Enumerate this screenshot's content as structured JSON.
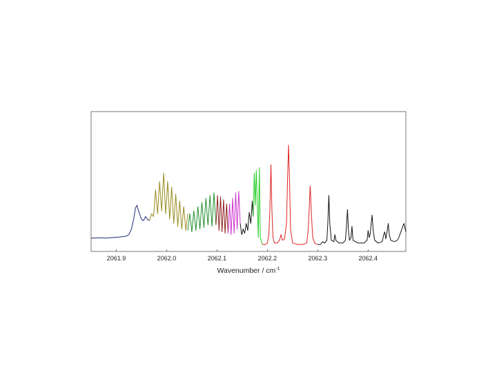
{
  "chart_data": {
    "type": "line",
    "title": "",
    "xlabel_main": "Wavenumber / cm",
    "xlabel_superscript": "-1",
    "ylabel": "",
    "xlim": [
      2061.85,
      2062.475
    ],
    "ylim": [
      0,
      1
    ],
    "y_axis_ticks_labeled": false,
    "grid": false,
    "legend": "none",
    "x_ticks": [
      {
        "value": 2061.9,
        "label": "2061.9"
      },
      {
        "value": 2062.0,
        "label": "2062.0"
      },
      {
        "value": 2062.1,
        "label": "2062.1"
      },
      {
        "value": 2062.2,
        "label": "2062.2"
      },
      {
        "value": 2062.3,
        "label": "2062.3"
      },
      {
        "value": 2062.4,
        "label": "2062.4"
      }
    ],
    "series": [
      {
        "color": "#1f2a7a",
        "points": [
          [
            2061.85,
            0.095
          ],
          [
            2061.865,
            0.098
          ],
          [
            2061.88,
            0.096
          ],
          [
            2061.895,
            0.1
          ],
          [
            2061.91,
            0.104
          ],
          [
            2061.92,
            0.11
          ],
          [
            2061.925,
            0.12
          ],
          [
            2061.93,
            0.16
          ],
          [
            2061.935,
            0.24
          ],
          [
            2061.938,
            0.31
          ],
          [
            2061.941,
            0.33
          ],
          [
            2061.944,
            0.29
          ],
          [
            2061.947,
            0.26
          ],
          [
            2061.95,
            0.23
          ],
          [
            2061.954,
            0.22
          ],
          [
            2061.958,
            0.25
          ],
          [
            2061.962,
            0.23
          ],
          [
            2061.966,
            0.22
          ]
        ]
      },
      {
        "color": "#9a8a1c",
        "points": [
          [
            2061.966,
            0.22
          ],
          [
            2061.97,
            0.27
          ],
          [
            2061.974,
            0.25
          ],
          [
            2061.978,
            0.44
          ],
          [
            2061.982,
            0.27
          ],
          [
            2061.986,
            0.5
          ],
          [
            2061.99,
            0.29
          ],
          [
            2061.994,
            0.56
          ],
          [
            2061.998,
            0.27
          ],
          [
            2062.002,
            0.5
          ],
          [
            2062.006,
            0.23
          ],
          [
            2062.01,
            0.46
          ],
          [
            2062.014,
            0.2
          ],
          [
            2062.018,
            0.41
          ],
          [
            2062.022,
            0.18
          ],
          [
            2062.026,
            0.36
          ],
          [
            2062.03,
            0.16
          ],
          [
            2062.034,
            0.32
          ],
          [
            2062.038,
            0.15
          ],
          [
            2062.042,
            0.27
          ]
        ]
      },
      {
        "color": "#1e8f2a",
        "points": [
          [
            2062.042,
            0.15
          ],
          [
            2062.046,
            0.27
          ],
          [
            2062.05,
            0.14
          ],
          [
            2062.054,
            0.29
          ],
          [
            2062.058,
            0.15
          ],
          [
            2062.062,
            0.32
          ],
          [
            2062.066,
            0.16
          ],
          [
            2062.07,
            0.35
          ],
          [
            2062.074,
            0.17
          ],
          [
            2062.078,
            0.38
          ],
          [
            2062.082,
            0.19
          ],
          [
            2062.086,
            0.4
          ],
          [
            2062.09,
            0.18
          ],
          [
            2062.094,
            0.42
          ],
          [
            2062.098,
            0.19
          ]
        ]
      },
      {
        "color": "#8b1a1a",
        "points": [
          [
            2062.098,
            0.19
          ],
          [
            2062.101,
            0.4
          ],
          [
            2062.104,
            0.15
          ],
          [
            2062.107,
            0.39
          ],
          [
            2062.11,
            0.14
          ],
          [
            2062.113,
            0.37
          ],
          [
            2062.116,
            0.13
          ],
          [
            2062.119,
            0.34
          ],
          [
            2062.122,
            0.13
          ]
        ]
      },
      {
        "color": "#cc33cc",
        "points": [
          [
            2062.122,
            0.13
          ],
          [
            2062.125,
            0.34
          ],
          [
            2062.128,
            0.12
          ],
          [
            2062.131,
            0.38
          ],
          [
            2062.134,
            0.13
          ],
          [
            2062.137,
            0.42
          ],
          [
            2062.14,
            0.16
          ],
          [
            2062.143,
            0.43
          ],
          [
            2062.146,
            0.2
          ]
        ]
      },
      {
        "color": "#111111",
        "points": [
          [
            2062.146,
            0.2
          ],
          [
            2062.149,
            0.12
          ],
          [
            2062.152,
            0.16
          ],
          [
            2062.155,
            0.13
          ],
          [
            2062.158,
            0.2
          ],
          [
            2062.161,
            0.15
          ],
          [
            2062.164,
            0.28
          ],
          [
            2062.167,
            0.2
          ],
          [
            2062.17,
            0.36
          ],
          [
            2062.172,
            0.25
          ]
        ]
      },
      {
        "color": "#22cc22",
        "points": [
          [
            2062.172,
            0.25
          ],
          [
            2062.174,
            0.56
          ],
          [
            2062.176,
            0.33
          ],
          [
            2062.178,
            0.58
          ],
          [
            2062.18,
            0.33
          ],
          [
            2062.182,
            0.1
          ],
          [
            2062.184,
            0.6
          ],
          [
            2062.186,
            0.1
          ],
          [
            2062.19,
            0.05
          ]
        ]
      },
      {
        "color": "#dd2222",
        "points": [
          [
            2062.19,
            0.05
          ],
          [
            2062.196,
            0.05
          ],
          [
            2062.2,
            0.06
          ],
          [
            2062.203,
            0.12
          ],
          [
            2062.205,
            0.3
          ],
          [
            2062.207,
            0.62
          ],
          [
            2062.209,
            0.3
          ],
          [
            2062.211,
            0.1
          ],
          [
            2062.214,
            0.06
          ],
          [
            2062.22,
            0.06
          ],
          [
            2062.224,
            0.08
          ],
          [
            2062.227,
            0.12
          ],
          [
            2062.23,
            0.08
          ],
          [
            2062.234,
            0.09
          ],
          [
            2062.238,
            0.2
          ],
          [
            2062.24,
            0.5
          ],
          [
            2062.242,
            0.76
          ],
          [
            2062.244,
            0.5
          ],
          [
            2062.246,
            0.16
          ],
          [
            2062.25,
            0.06
          ],
          [
            2062.26,
            0.05
          ],
          [
            2062.27,
            0.05
          ],
          [
            2062.278,
            0.06
          ],
          [
            2062.281,
            0.15
          ],
          [
            2062.283,
            0.3
          ],
          [
            2062.285,
            0.47
          ],
          [
            2062.287,
            0.3
          ],
          [
            2062.29,
            0.1
          ],
          [
            2062.294,
            0.06
          ],
          [
            2062.3,
            0.05
          ]
        ]
      },
      {
        "color": "#111111",
        "points": [
          [
            2062.3,
            0.05
          ],
          [
            2062.305,
            0.05
          ],
          [
            2062.31,
            0.07
          ],
          [
            2062.314,
            0.06
          ],
          [
            2062.318,
            0.08
          ],
          [
            2062.32,
            0.2
          ],
          [
            2062.322,
            0.4
          ],
          [
            2062.324,
            0.2
          ],
          [
            2062.327,
            0.08
          ],
          [
            2062.332,
            0.07
          ],
          [
            2062.334,
            0.12
          ],
          [
            2062.336,
            0.08
          ],
          [
            2062.342,
            0.06
          ],
          [
            2062.35,
            0.06
          ],
          [
            2062.355,
            0.08
          ],
          [
            2062.357,
            0.18
          ],
          [
            2062.359,
            0.3
          ],
          [
            2062.361,
            0.15
          ],
          [
            2062.363,
            0.08
          ],
          [
            2062.366,
            0.1
          ],
          [
            2062.368,
            0.18
          ],
          [
            2062.37,
            0.08
          ],
          [
            2062.38,
            0.06
          ],
          [
            2062.392,
            0.06
          ],
          [
            2062.398,
            0.08
          ],
          [
            2062.4,
            0.15
          ],
          [
            2062.402,
            0.1
          ],
          [
            2062.404,
            0.12
          ],
          [
            2062.406,
            0.2
          ],
          [
            2062.408,
            0.26
          ],
          [
            2062.41,
            0.15
          ],
          [
            2062.413,
            0.08
          ],
          [
            2062.42,
            0.06
          ],
          [
            2062.428,
            0.07
          ],
          [
            2062.431,
            0.12
          ],
          [
            2062.433,
            0.14
          ],
          [
            2062.435,
            0.09
          ],
          [
            2062.438,
            0.15
          ],
          [
            2062.44,
            0.2
          ],
          [
            2062.442,
            0.12
          ],
          [
            2062.445,
            0.08
          ],
          [
            2062.452,
            0.07
          ],
          [
            2062.458,
            0.08
          ],
          [
            2062.461,
            0.1
          ],
          [
            2062.465,
            0.14
          ],
          [
            2062.468,
            0.17
          ],
          [
            2062.471,
            0.2
          ],
          [
            2062.475,
            0.14
          ]
        ]
      }
    ]
  }
}
